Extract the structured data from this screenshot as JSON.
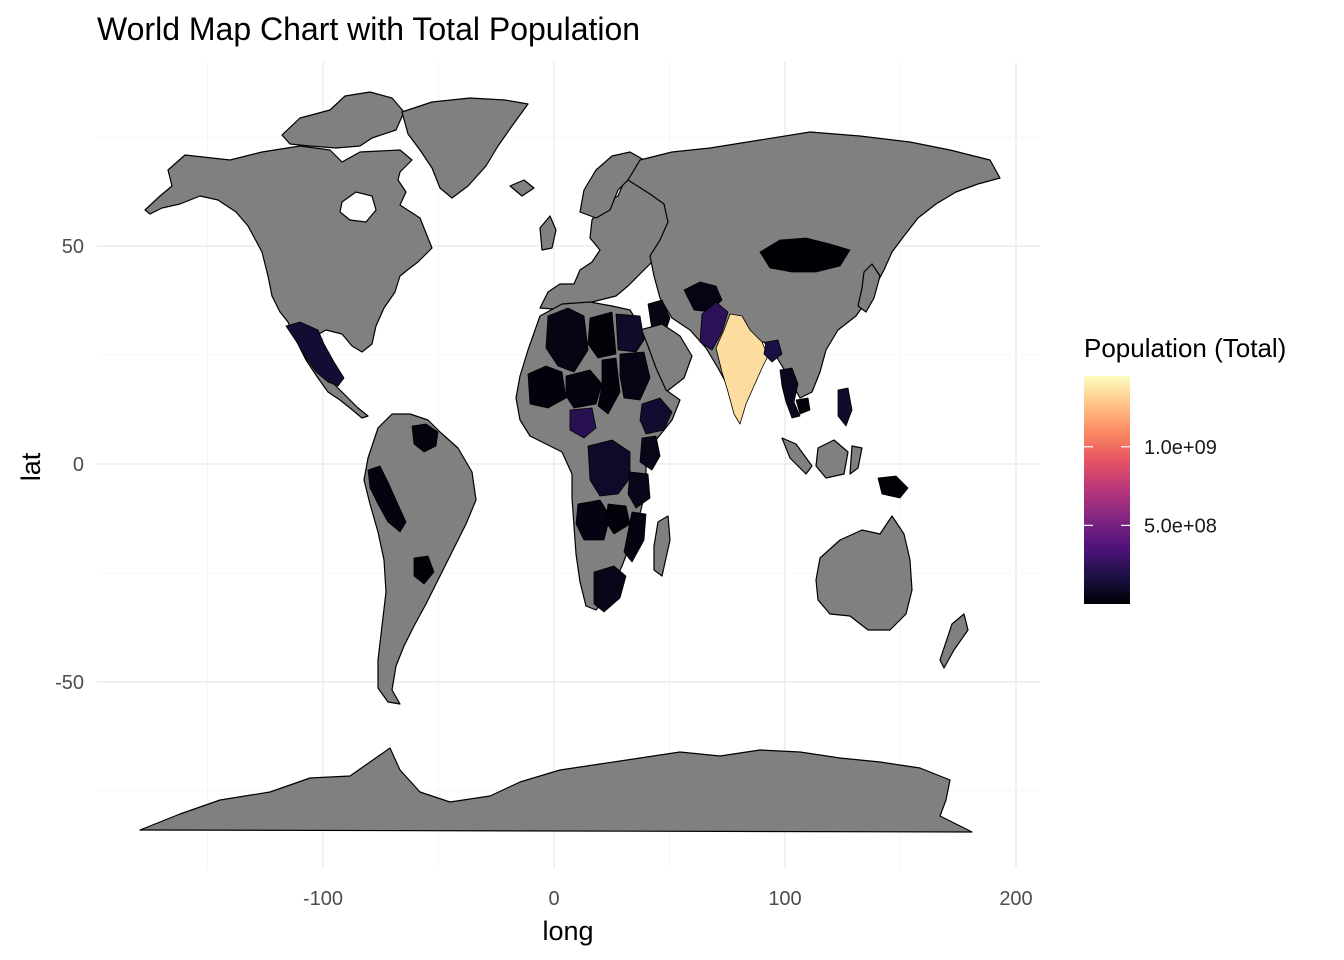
{
  "chart_data": {
    "type": "choropleth-map",
    "title": "World Map Chart with Total Population",
    "xlabel": "long",
    "ylabel": "lat",
    "xlim": [
      -190,
      210
    ],
    "ylim": [
      -90,
      90
    ],
    "x_ticks": [
      {
        "value": -100,
        "label": "-100"
      },
      {
        "value": 0,
        "label": "0"
      },
      {
        "value": 100,
        "label": "100"
      },
      {
        "value": 200,
        "label": "200"
      }
    ],
    "y_ticks": [
      {
        "value": 50,
        "label": "50"
      },
      {
        "value": 0,
        "label": "0"
      },
      {
        "value": -50,
        "label": "-50"
      }
    ],
    "grid": true,
    "no_data_color": "#808080",
    "legend": {
      "title": "Population (Total)",
      "placement": "right",
      "palette": "magma",
      "colors": [
        "#000004",
        "#1d1147",
        "#51127c",
        "#822681",
        "#b63679",
        "#e65164",
        "#fb8861",
        "#fec287",
        "#fcfdbf"
      ],
      "range": [
        0,
        1450000000
      ],
      "ticks": [
        {
          "value": 1000000000,
          "label": "1.0e+09"
        },
        {
          "value": 500000000,
          "label": "5.0e+08"
        }
      ]
    },
    "regions": [
      {
        "name": "India",
        "value": 1350000000
      },
      {
        "name": "Pakistan",
        "value": 230000000
      },
      {
        "name": "Bangladesh",
        "value": 170000000
      },
      {
        "name": "Nigeria",
        "value": 215000000
      },
      {
        "name": "Ethiopia",
        "value": 120000000
      },
      {
        "name": "Egypt",
        "value": 105000000
      },
      {
        "name": "DR Congo",
        "value": 100000000
      },
      {
        "name": "Mexico",
        "value": 130000000
      },
      {
        "name": "Philippines",
        "value": 110000000
      },
      {
        "name": "South Africa",
        "value": 60000000
      },
      {
        "name": "Tanzania",
        "value": 60000000
      },
      {
        "name": "Kenya",
        "value": 54000000
      },
      {
        "name": "Thailand",
        "value": 70000000
      },
      {
        "name": "Iraq",
        "value": 42000000
      },
      {
        "name": "Afghanistan",
        "value": 40000000
      },
      {
        "name": "Sudan",
        "value": 45000000
      },
      {
        "name": "Algeria",
        "value": 44000000
      },
      {
        "name": "Peru",
        "value": 33000000
      },
      {
        "name": "Angola",
        "value": 34000000
      },
      {
        "name": "Mozambique",
        "value": 32000000
      },
      {
        "name": "Mongolia",
        "value": 3300000
      },
      {
        "name": "Mali",
        "value": 21000000
      },
      {
        "name": "Niger",
        "value": 25000000
      },
      {
        "name": "Chad",
        "value": 17000000
      },
      {
        "name": "Venezuela",
        "value": 28000000
      },
      {
        "name": "Papua New Guinea",
        "value": 9000000
      },
      {
        "name": "Zambia",
        "value": 19000000
      },
      {
        "name": "Cambodia",
        "value": 17000000
      },
      {
        "name": "Central America",
        "value": 18000000
      },
      {
        "name": "Libya",
        "value": 7000000
      },
      {
        "name": "Paraguay",
        "value": 7000000
      }
    ]
  }
}
